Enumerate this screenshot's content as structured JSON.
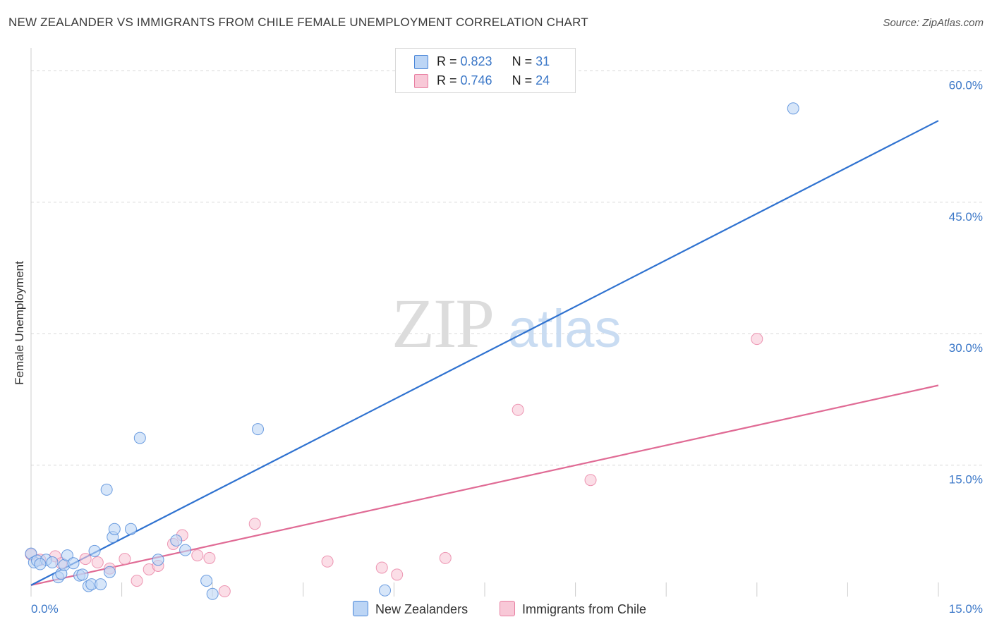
{
  "title": "NEW ZEALANDER VS IMMIGRANTS FROM CHILE FEMALE UNEMPLOYMENT CORRELATION CHART",
  "source": "Source: ZipAtlas.com",
  "watermark": {
    "zip": "ZIP",
    "atlas": "atlas"
  },
  "colors": {
    "blue": "#4a86d8",
    "blue_fill": "#bcd5f5",
    "blue_line": "#2f72d0",
    "pink": "#e87ea1",
    "pink_fill": "#f8c8d7",
    "pink_line": "#e06b95",
    "tick_text": "#3c78c8",
    "grid": "#d8d8d8"
  },
  "legend": {
    "rows": [
      {
        "r_label": "R = ",
        "r_value": "0.823",
        "n_label": "N = ",
        "n_value": "31"
      },
      {
        "r_label": "R = ",
        "r_value": "0.746",
        "n_label": "N = ",
        "n_value": "24"
      }
    ]
  },
  "bottom_legend": [
    "New Zealanders",
    "Immigrants from Chile"
  ],
  "chart_data": {
    "type": "scatter",
    "title": "NEW ZEALANDER VS IMMIGRANTS FROM CHILE FEMALE UNEMPLOYMENT CORRELATION CHART",
    "xlabel": "",
    "ylabel": "Female Unemployment",
    "xlim": [
      0,
      15
    ],
    "ylim": [
      0,
      60
    ],
    "x_tick_labels": [
      "0.0%",
      "15.0%"
    ],
    "y_ticks": [
      15,
      30,
      45,
      60
    ],
    "y_tick_labels": [
      "15.0%",
      "30.0%",
      "45.0%",
      "60.0%"
    ],
    "legend_position": "top-center",
    "series": [
      {
        "name": "New Zealanders",
        "R": 0.823,
        "N": 31,
        "points": [
          [
            0.0,
            4.9
          ],
          [
            0.05,
            3.9
          ],
          [
            0.1,
            4.1
          ],
          [
            0.25,
            4.2
          ],
          [
            0.35,
            3.9
          ],
          [
            0.45,
            2.2
          ],
          [
            0.5,
            2.6
          ],
          [
            0.55,
            3.6
          ],
          [
            0.6,
            4.7
          ],
          [
            0.7,
            3.8
          ],
          [
            0.8,
            2.4
          ],
          [
            0.85,
            2.5
          ],
          [
            0.95,
            1.2
          ],
          [
            1.0,
            1.4
          ],
          [
            1.05,
            5.2
          ],
          [
            1.15,
            1.4
          ],
          [
            1.25,
            12.2
          ],
          [
            1.3,
            2.8
          ],
          [
            1.35,
            6.8
          ],
          [
            1.38,
            7.7
          ],
          [
            1.65,
            7.7
          ],
          [
            1.8,
            18.1
          ],
          [
            2.1,
            4.2
          ],
          [
            2.4,
            6.4
          ],
          [
            2.55,
            5.3
          ],
          [
            2.9,
            1.8
          ],
          [
            3.0,
            0.3
          ],
          [
            3.75,
            19.1
          ],
          [
            5.85,
            0.7
          ],
          [
            12.6,
            55.7
          ],
          [
            0.15,
            3.7
          ]
        ],
        "trend": [
          [
            0.0,
            1.3
          ],
          [
            15.0,
            54.3
          ]
        ]
      },
      {
        "name": "Immigrants from Chile",
        "R": 0.746,
        "N": 24,
        "points": [
          [
            0.0,
            4.8
          ],
          [
            0.15,
            4.2
          ],
          [
            0.4,
            4.6
          ],
          [
            0.5,
            3.8
          ],
          [
            0.9,
            4.3
          ],
          [
            1.1,
            3.9
          ],
          [
            1.3,
            3.2
          ],
          [
            1.55,
            4.3
          ],
          [
            1.75,
            1.8
          ],
          [
            1.95,
            3.1
          ],
          [
            2.1,
            3.5
          ],
          [
            2.35,
            6.0
          ],
          [
            2.5,
            7.0
          ],
          [
            2.75,
            4.7
          ],
          [
            2.95,
            4.4
          ],
          [
            3.2,
            0.6
          ],
          [
            3.7,
            8.3
          ],
          [
            4.9,
            4.0
          ],
          [
            5.8,
            3.3
          ],
          [
            6.05,
            2.5
          ],
          [
            6.85,
            4.4
          ],
          [
            8.05,
            21.3
          ],
          [
            9.25,
            13.3
          ],
          [
            12.0,
            29.4
          ]
        ],
        "trend": [
          [
            0.0,
            1.3
          ],
          [
            15.0,
            24.1
          ]
        ]
      }
    ]
  }
}
